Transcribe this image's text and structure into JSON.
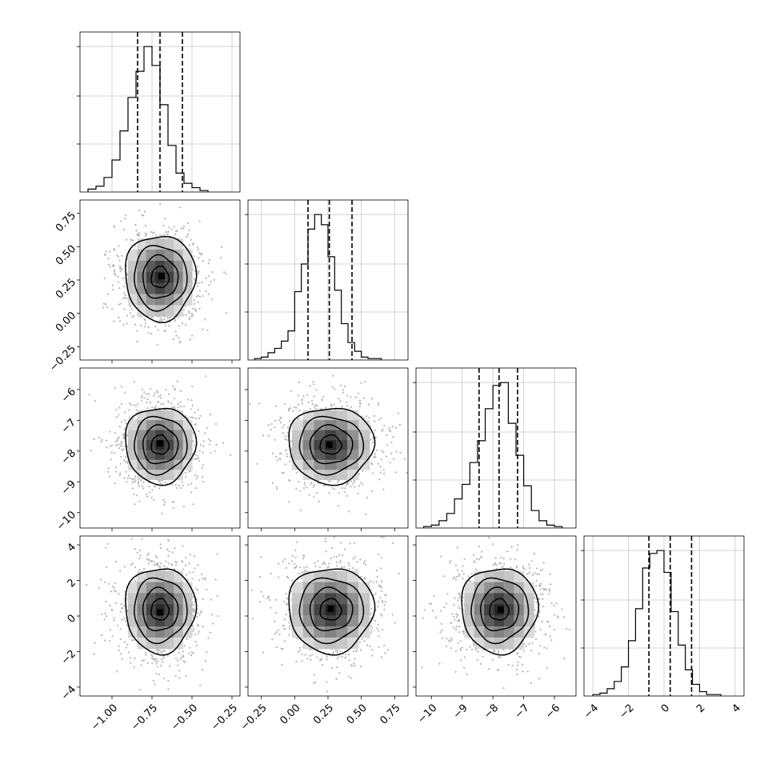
{
  "chart_data": {
    "type": "corner",
    "title": "",
    "grid": true,
    "colors": {
      "line": "#000000",
      "grid": "#c8c8c8",
      "scatter": "#b4b4b4",
      "background": "#ffffff"
    },
    "parameters": [
      {
        "index": 0,
        "label": "",
        "range": [
          -1.2,
          -0.2
        ],
        "ticks": [
          -1.0,
          -0.75,
          -0.5,
          -0.25
        ],
        "tick_labels": [
          "−1.00",
          "−0.75",
          "−0.50",
          "−0.25"
        ],
        "hist_edges_start": -1.15,
        "hist_bin_width": 0.05,
        "hist_counts": [
          0.02,
          0.04,
          0.1,
          0.22,
          0.42,
          0.65,
          0.83,
          1.0,
          0.87,
          0.6,
          0.32,
          0.13,
          0.06,
          0.03,
          0.01
        ],
        "quantiles": [
          -0.84,
          -0.7,
          -0.56
        ],
        "mean": -0.7,
        "sd": 0.11
      },
      {
        "index": 1,
        "label": "",
        "range": [
          -0.35,
          0.85
        ],
        "ticks": [
          -0.25,
          0.0,
          0.25,
          0.5,
          0.75
        ],
        "tick_labels": [
          "−0.25",
          "0.00",
          "0.25",
          "0.50",
          "0.75"
        ],
        "hist_edges_start": -0.3,
        "hist_bin_width": 0.05,
        "hist_counts": [
          0.01,
          0.02,
          0.05,
          0.08,
          0.13,
          0.2,
          0.47,
          0.66,
          0.9,
          1.0,
          0.93,
          0.71,
          0.48,
          0.25,
          0.12,
          0.06,
          0.02,
          0.01,
          0.01
        ],
        "quantiles": [
          0.1,
          0.26,
          0.43
        ],
        "mean": 0.27,
        "sd": 0.16
      },
      {
        "index": 2,
        "label": "",
        "range": [
          -10.5,
          -5.3
        ],
        "ticks": [
          -10,
          -9,
          -8,
          -7,
          -6
        ],
        "tick_labels": [
          "−10",
          "−9",
          "−8",
          "−7",
          "−6"
        ],
        "hist_edges_start": -10.25,
        "hist_bin_width": 0.25,
        "hist_counts": [
          0.01,
          0.02,
          0.05,
          0.1,
          0.2,
          0.3,
          0.45,
          0.6,
          0.82,
          0.98,
          1.0,
          0.72,
          0.5,
          0.29,
          0.12,
          0.05,
          0.02,
          0.01
        ],
        "quantiles": [
          -8.45,
          -7.8,
          -7.2
        ],
        "mean": -7.8,
        "sd": 0.62
      },
      {
        "index": 3,
        "label": "",
        "range": [
          -4.5,
          4.5
        ],
        "ticks": [
          -4,
          -2,
          0,
          2,
          4
        ],
        "tick_labels": [
          "−4",
          "−2",
          "0",
          "2",
          "4"
        ],
        "hist_edges_start": -4.0,
        "hist_bin_width": 0.4,
        "hist_counts": [
          0.01,
          0.02,
          0.05,
          0.1,
          0.2,
          0.38,
          0.6,
          0.88,
          0.98,
          1.0,
          0.85,
          0.58,
          0.35,
          0.18,
          0.08,
          0.03,
          0.01,
          0.01
        ],
        "quantiles": [
          -0.85,
          0.35,
          1.55
        ],
        "mean": 0.35,
        "sd": 1.2
      }
    ],
    "panels": [
      {
        "row": 1,
        "col": 0,
        "kind": "kde-contour",
        "peak": [
          -0.69,
          0.28
        ]
      },
      {
        "row": 2,
        "col": 0,
        "kind": "kde-contour",
        "peak": [
          -0.7,
          -7.75
        ]
      },
      {
        "row": 2,
        "col": 1,
        "kind": "kde-contour",
        "peak": [
          0.26,
          -7.8
        ]
      },
      {
        "row": 3,
        "col": 0,
        "kind": "kde-contour",
        "peak": [
          -0.7,
          0.2
        ]
      },
      {
        "row": 3,
        "col": 1,
        "kind": "kde-contour",
        "peak": [
          0.27,
          0.4
        ]
      },
      {
        "row": 3,
        "col": 2,
        "kind": "kde-contour",
        "peak": [
          -7.75,
          0.35
        ]
      }
    ]
  }
}
